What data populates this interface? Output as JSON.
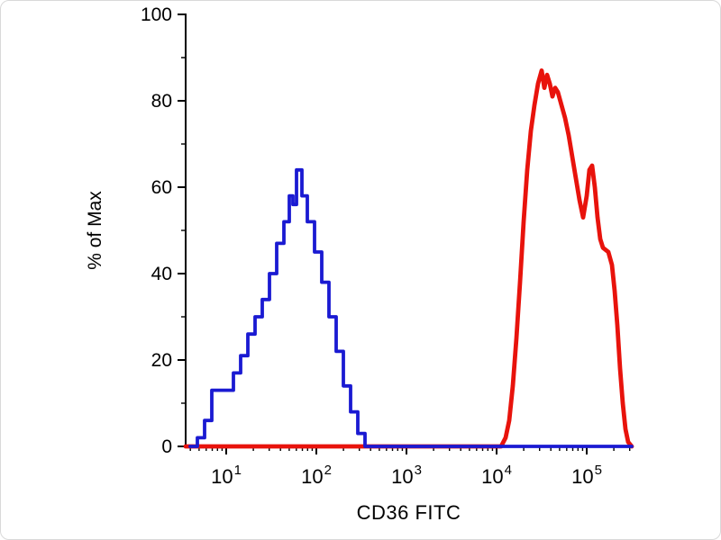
{
  "chart_data": {
    "type": "line",
    "variant": "flow-cytometry-overlay-histogram",
    "title": "",
    "xlabel": "CD36 FITC",
    "ylabel": "% of Max",
    "x_scale": "log10",
    "x_log_range": [
      0.55,
      5.5
    ],
    "x_tick_base": "10",
    "x_major_tick_exponents": [
      1,
      2,
      3,
      4,
      5
    ],
    "ylim": [
      0,
      100
    ],
    "y_major_ticks": [
      0,
      20,
      40,
      60,
      80,
      100
    ],
    "y_minor_tick_step": 10,
    "grid": "off",
    "legend": "none",
    "axis_color": "#000000",
    "background_color": "#ffffff",
    "series": [
      {
        "name": "red-histogram",
        "color": "#e8130c",
        "style": "line",
        "stroke_width": 4.8,
        "points_log10x_percent": [
          [
            0.55,
            0
          ],
          [
            4.05,
            0
          ],
          [
            4.1,
            2
          ],
          [
            4.14,
            6
          ],
          [
            4.18,
            14
          ],
          [
            4.22,
            25
          ],
          [
            4.26,
            38
          ],
          [
            4.3,
            52
          ],
          [
            4.34,
            64
          ],
          [
            4.38,
            73
          ],
          [
            4.42,
            79
          ],
          [
            4.46,
            84
          ],
          [
            4.5,
            87
          ],
          [
            4.53,
            83
          ],
          [
            4.56,
            86
          ],
          [
            4.59,
            84
          ],
          [
            4.62,
            81
          ],
          [
            4.65,
            83
          ],
          [
            4.68,
            82
          ],
          [
            4.72,
            79
          ],
          [
            4.76,
            76
          ],
          [
            4.8,
            72
          ],
          [
            4.84,
            67
          ],
          [
            4.88,
            62
          ],
          [
            4.92,
            57
          ],
          [
            4.96,
            53
          ],
          [
            5.0,
            58
          ],
          [
            5.03,
            64
          ],
          [
            5.06,
            65
          ],
          [
            5.09,
            60
          ],
          [
            5.12,
            53
          ],
          [
            5.15,
            48
          ],
          [
            5.18,
            46
          ],
          [
            5.24,
            45
          ],
          [
            5.28,
            42
          ],
          [
            5.31,
            36
          ],
          [
            5.34,
            28
          ],
          [
            5.37,
            18
          ],
          [
            5.4,
            10
          ],
          [
            5.43,
            4
          ],
          [
            5.46,
            1
          ],
          [
            5.5,
            0
          ]
        ]
      },
      {
        "name": "blue-histogram",
        "color": "#1a1ad2",
        "style": "step",
        "stroke_width": 3.8,
        "points_log10x_percent": [
          [
            0.6,
            0
          ],
          [
            0.68,
            2
          ],
          [
            0.76,
            6
          ],
          [
            0.84,
            13
          ],
          [
            1.0,
            13
          ],
          [
            1.08,
            17
          ],
          [
            1.16,
            21
          ],
          [
            1.24,
            26
          ],
          [
            1.32,
            30
          ],
          [
            1.4,
            34
          ],
          [
            1.48,
            40
          ],
          [
            1.56,
            47
          ],
          [
            1.64,
            52
          ],
          [
            1.7,
            58
          ],
          [
            1.74,
            56
          ],
          [
            1.78,
            64
          ],
          [
            1.84,
            58
          ],
          [
            1.9,
            52
          ],
          [
            1.98,
            45
          ],
          [
            2.06,
            38
          ],
          [
            2.14,
            30
          ],
          [
            2.22,
            22
          ],
          [
            2.3,
            14
          ],
          [
            2.38,
            8
          ],
          [
            2.46,
            3
          ],
          [
            2.54,
            0
          ],
          [
            5.5,
            0
          ]
        ]
      }
    ]
  }
}
